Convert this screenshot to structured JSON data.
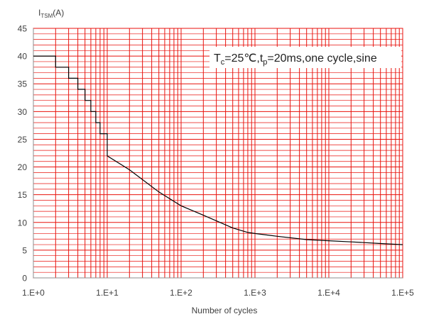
{
  "chart_data": {
    "type": "line",
    "xscale": "log",
    "xlim": [
      1,
      100000
    ],
    "ylim": [
      0,
      45
    ],
    "grid": true,
    "ylabel_main": "I",
    "ylabel_sub": "TSM",
    "ylabel_unit": "(A)",
    "xlabel": "Number of cycles",
    "x_ticks": [
      "1.E+0",
      "1.E+1",
      "1.E+2",
      "1.E+3",
      "1.E+4",
      "1.E+5"
    ],
    "y_ticks": [
      "0",
      "5",
      "10",
      "15",
      "20",
      "25",
      "30",
      "35",
      "40",
      "45"
    ],
    "annotation": {
      "parts": [
        {
          "t": "T",
          "sub": false
        },
        {
          "t": "c",
          "sub": true
        },
        {
          "t": "=25℃,t",
          "sub": false
        },
        {
          "t": "p",
          "sub": true
        },
        {
          "t": "=20ms,one  cycle,sine",
          "sub": false
        }
      ]
    },
    "series": [
      {
        "x": [
          1,
          2,
          2,
          3,
          3,
          4,
          4,
          5,
          5,
          6,
          6,
          7,
          7,
          8,
          8,
          10,
          10,
          20,
          50,
          100,
          200,
          500,
          800,
          1000,
          2000,
          5000,
          10000,
          20000,
          50000,
          100000
        ],
        "y": [
          40,
          40,
          38,
          38,
          36,
          36,
          34,
          34,
          32,
          32,
          30,
          30,
          28,
          28,
          26,
          26,
          22,
          19.5,
          15.5,
          13,
          11.3,
          9,
          8.2,
          8,
          7.5,
          6.9,
          6.7,
          6.5,
          6.2,
          6
        ]
      }
    ],
    "colors": {
      "grid": "#e8120c",
      "line": "#000000",
      "axis": "#8c8c8c"
    }
  }
}
